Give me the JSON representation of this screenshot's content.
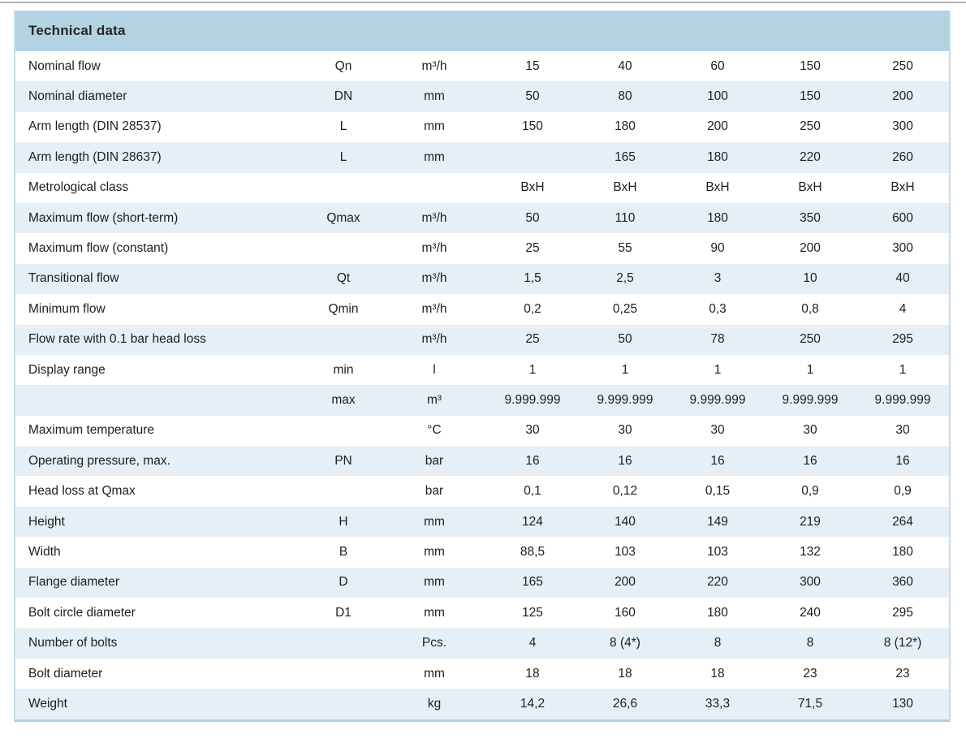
{
  "page": {
    "top_rule_color": "#b5b5b5",
    "background": "#ffffff"
  },
  "table": {
    "title": "Technical data",
    "colors": {
      "header_bg": "#b4d3e2",
      "stripe_bg": "#e6eff6",
      "row_bg": "#ffffff",
      "side_border": "#c6dce9",
      "bottom_border": "#b2cede",
      "text": "#1e1e1e"
    },
    "rows": [
      {
        "label": "Nominal flow",
        "symbol": "Qn",
        "unit": "m³/h",
        "values": [
          "15",
          "40",
          "60",
          "150",
          "250"
        ]
      },
      {
        "label": "Nominal diameter",
        "symbol": "DN",
        "unit": "mm",
        "values": [
          "50",
          "80",
          "100",
          "150",
          "200"
        ]
      },
      {
        "label": "Arm length (DIN 28537)",
        "symbol": "L",
        "unit": "mm",
        "values": [
          "150",
          "180",
          "200",
          "250",
          "300"
        ]
      },
      {
        "label": "Arm length (DIN 28637)",
        "symbol": "L",
        "unit": "mm",
        "values": [
          "",
          "165",
          "180",
          "220",
          "260"
        ]
      },
      {
        "label": "Metrological class",
        "symbol": "",
        "unit": "",
        "values": [
          "BxH",
          "BxH",
          "BxH",
          "BxH",
          "BxH"
        ]
      },
      {
        "label": "Maximum flow (short-term)",
        "symbol": "Qmax",
        "unit": "m³/h",
        "values": [
          "50",
          "110",
          "180",
          "350",
          "600"
        ]
      },
      {
        "label": "Maximum flow (constant)",
        "symbol": "",
        "unit": "m³/h",
        "values": [
          "25",
          "55",
          "90",
          "200",
          "300"
        ]
      },
      {
        "label": "Transitional flow",
        "symbol": "Qt",
        "unit": "m³/h",
        "values": [
          "1,5",
          "2,5",
          "3",
          "10",
          "40"
        ]
      },
      {
        "label": "Minimum flow",
        "symbol": "Qmin",
        "unit": "m³/h",
        "values": [
          "0,2",
          "0,25",
          "0,3",
          "0,8",
          "4"
        ]
      },
      {
        "label": "Flow rate with 0.1 bar head loss",
        "symbol": "",
        "unit": "m³/h",
        "values": [
          "25",
          "50",
          "78",
          "250",
          "295"
        ]
      },
      {
        "label": "Display range",
        "symbol": "min",
        "unit": "l",
        "values": [
          "1",
          "1",
          "1",
          "1",
          "1"
        ]
      },
      {
        "label": "",
        "symbol": "max",
        "unit": "m³",
        "values": [
          "9.999.999",
          "9.999.999",
          "9.999.999",
          "9.999.999",
          "9.999.999"
        ]
      },
      {
        "label": "Maximum temperature",
        "symbol": "",
        "unit": "°C",
        "values": [
          "30",
          "30",
          "30",
          "30",
          "30"
        ]
      },
      {
        "label": "Operating pressure, max.",
        "symbol": "PN",
        "unit": "bar",
        "values": [
          "16",
          "16",
          "16",
          "16",
          "16"
        ]
      },
      {
        "label": "Head loss at Qmax",
        "symbol": "",
        "unit": "bar",
        "values": [
          "0,1",
          "0,12",
          "0,15",
          "0,9",
          "0,9"
        ]
      },
      {
        "label": "Height",
        "symbol": "H",
        "unit": "mm",
        "values": [
          "124",
          "140",
          "149",
          "219",
          "264"
        ]
      },
      {
        "label": "Width",
        "symbol": "B",
        "unit": "mm",
        "values": [
          "88,5",
          "103",
          "103",
          "132",
          "180"
        ]
      },
      {
        "label": "Flange diameter",
        "symbol": "D",
        "unit": "mm",
        "values": [
          "165",
          "200",
          "220",
          "300",
          "360"
        ]
      },
      {
        "label": "Bolt circle diameter",
        "symbol": "D1",
        "unit": "mm",
        "values": [
          "125",
          "160",
          "180",
          "240",
          "295"
        ]
      },
      {
        "label": "Number of bolts",
        "symbol": "",
        "unit": "Pcs.",
        "values": [
          "4",
          "8 (4*)",
          "8",
          "8",
          "8 (12*)"
        ]
      },
      {
        "label": "Bolt diameter",
        "symbol": "",
        "unit": "mm",
        "values": [
          "18",
          "18",
          "18",
          "23",
          "23"
        ]
      },
      {
        "label": "Weight",
        "symbol": "",
        "unit": "kg",
        "values": [
          "14,2",
          "26,6",
          "33,3",
          "71,5",
          "130"
        ]
      }
    ]
  }
}
